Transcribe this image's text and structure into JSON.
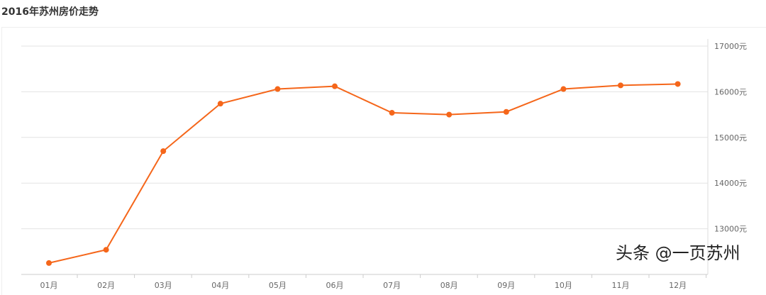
{
  "title": "2016年苏州房价走势",
  "watermark": "头条 @一页苏州",
  "chart_data": {
    "type": "line",
    "title": "2016年苏州房价走势",
    "categories": [
      "01月",
      "02月",
      "03月",
      "04月",
      "05月",
      "06月",
      "07月",
      "08月",
      "09月",
      "10月",
      "11月",
      "12月"
    ],
    "values": [
      12250,
      12540,
      14700,
      15740,
      16060,
      16120,
      15540,
      15500,
      15560,
      16060,
      16140,
      16170
    ],
    "y_ticks": [
      "13000元",
      "14000元",
      "15000元",
      "16000元",
      "17000元"
    ],
    "ylim": [
      12000,
      17000
    ],
    "y_axis_position": "right",
    "grid": true,
    "color": "#f5661a"
  }
}
